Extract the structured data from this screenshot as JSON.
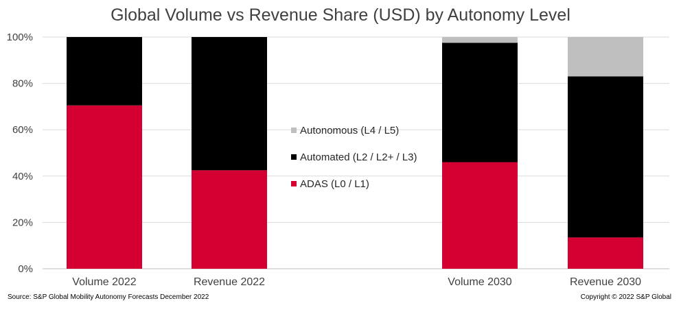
{
  "chart_data": {
    "type": "bar",
    "stacked": true,
    "title": "Global Volume vs Revenue Share (USD) by Autonomy Level",
    "categories": [
      "Volume 2022",
      "Revenue 2022",
      "Volume 2030",
      "Revenue 2030"
    ],
    "series": [
      {
        "name": "ADAS (L0 / L1)",
        "color": "#d50032",
        "values": [
          70.5,
          42.5,
          46,
          13.5
        ]
      },
      {
        "name": "Automated (L2 / L2+ / L3)",
        "color": "#000000",
        "values": [
          29.5,
          57.5,
          51.5,
          69.5
        ]
      },
      {
        "name": "Autonomous (L4 / L5)",
        "color": "#bfbfbf",
        "values": [
          0,
          0,
          2.5,
          17
        ]
      }
    ],
    "yticks": [
      "0%",
      "20%",
      "40%",
      "60%",
      "80%",
      "100%"
    ],
    "ylim": [
      0,
      100
    ],
    "grid": true,
    "legend_position": "center"
  },
  "footer": {
    "source": "Source: S&P Global Mobility Autonomy Forecasts December 2022",
    "copyright": "Copyright © 2022 S&P Global"
  }
}
